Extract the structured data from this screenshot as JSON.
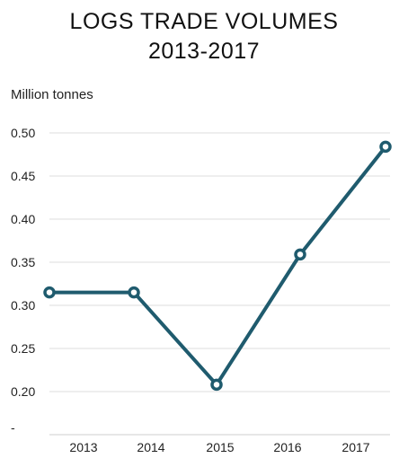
{
  "chart_data": {
    "type": "line",
    "title": [
      "LOGS TRADE VOLUMES",
      "2013-2017"
    ],
    "ylabel": "Million tonnes",
    "xlabel": "",
    "categories": [
      "2013",
      "2014",
      "2015",
      "2016",
      "2017"
    ],
    "series": [
      {
        "values": [
          0.315,
          0.315,
          0.208,
          0.359,
          0.484
        ],
        "color": "#1f5b6e"
      }
    ],
    "ylim": [
      0.15,
      0.5
    ],
    "yticks": [
      0.5,
      0.45,
      0.4,
      0.35,
      0.3,
      0.25,
      0.2
    ],
    "ytick_labels": [
      "0.50",
      "0.45",
      "0.40",
      "0.35",
      "0.30",
      "0.25",
      "0.20"
    ],
    "bottom_tick_label": "-",
    "grid": true,
    "marker": "hollow-circle"
  }
}
